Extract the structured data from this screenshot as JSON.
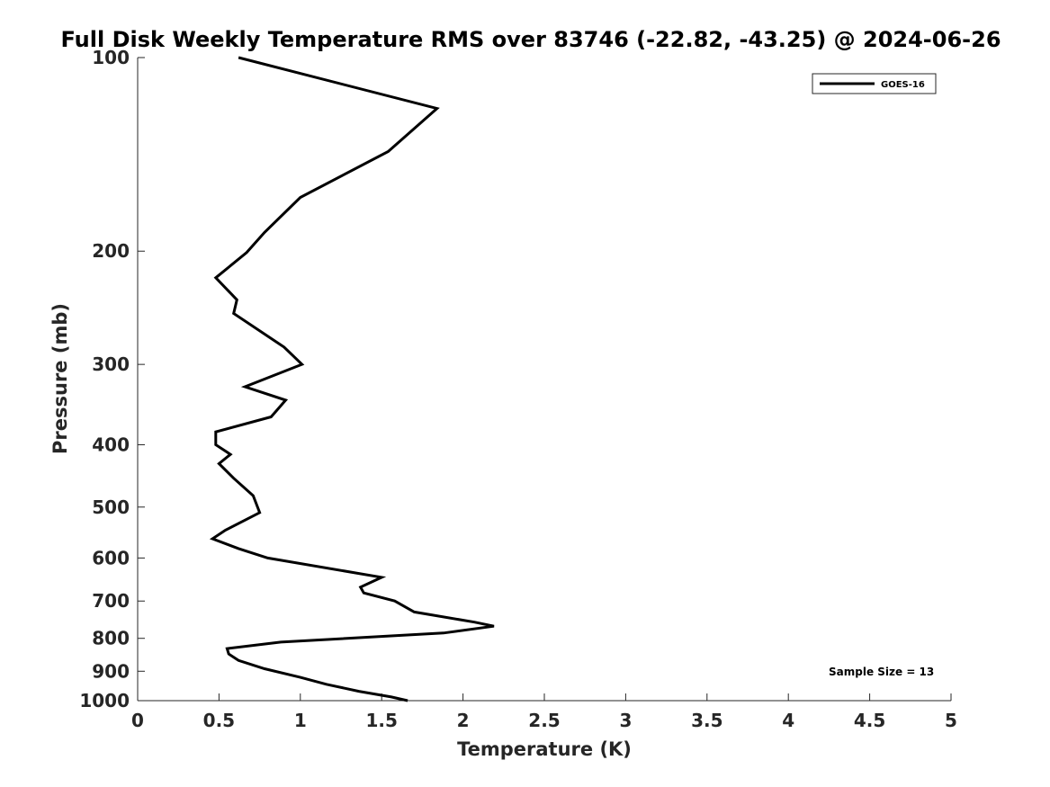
{
  "chart_data": {
    "type": "line",
    "title": "Full Disk Weekly Temperature RMS over 83746 (-22.82, -43.25) @ 2024-06-26",
    "xlabel": "Temperature (K)",
    "ylabel": "Pressure (mb)",
    "xlim": [
      0,
      5
    ],
    "ylim": [
      1000,
      100
    ],
    "yscale": "log",
    "y_reversed": true,
    "grid": false,
    "legend_position": "top-right",
    "xticks": [
      "0",
      "0.5",
      "1",
      "1.5",
      "2",
      "2.5",
      "3",
      "3.5",
      "4",
      "4.5",
      "5"
    ],
    "yticks": [
      "100",
      "200",
      "300",
      "400",
      "500",
      "600",
      "700",
      "800",
      "900",
      "1000"
    ],
    "annotation": "Sample Size = 13",
    "colors": {
      "series": "#000000",
      "axis": "#262626"
    },
    "series": [
      {
        "name": "GOES-16",
        "points": [
          [
            0.62,
            100
          ],
          [
            1.84,
            120
          ],
          [
            1.54,
            140
          ],
          [
            1.0,
            165
          ],
          [
            0.78,
            187
          ],
          [
            0.67,
            201
          ],
          [
            0.48,
            220
          ],
          [
            0.61,
            238
          ],
          [
            0.59,
            250
          ],
          [
            0.9,
            282
          ],
          [
            1.01,
            300
          ],
          [
            0.66,
            325
          ],
          [
            0.91,
            341
          ],
          [
            0.82,
            362
          ],
          [
            0.48,
            382
          ],
          [
            0.48,
            400
          ],
          [
            0.57,
            414
          ],
          [
            0.5,
            428
          ],
          [
            0.59,
            451
          ],
          [
            0.71,
            480
          ],
          [
            0.75,
            510
          ],
          [
            0.54,
            543
          ],
          [
            0.46,
            560
          ],
          [
            0.62,
            580
          ],
          [
            0.8,
            600
          ],
          [
            1.5,
            643
          ],
          [
            1.37,
            666
          ],
          [
            1.39,
            680
          ],
          [
            1.58,
            700
          ],
          [
            1.7,
            728
          ],
          [
            2.07,
            755
          ],
          [
            2.19,
            766
          ],
          [
            1.88,
            785
          ],
          [
            0.88,
            811
          ],
          [
            0.55,
            830
          ],
          [
            0.56,
            846
          ],
          [
            0.62,
            866
          ],
          [
            0.78,
            892
          ],
          [
            1.0,
            920
          ],
          [
            1.16,
            943
          ],
          [
            1.36,
            967
          ],
          [
            1.56,
            987
          ],
          [
            1.66,
            1000
          ]
        ]
      }
    ]
  }
}
